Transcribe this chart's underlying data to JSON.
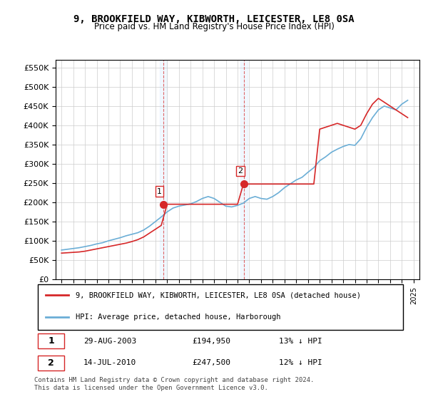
{
  "title": "9, BROOKFIELD WAY, KIBWORTH, LEICESTER, LE8 0SA",
  "subtitle": "Price paid vs. HM Land Registry's House Price Index (HPI)",
  "hpi_label": "HPI: Average price, detached house, Harborough",
  "price_label": "9, BROOKFIELD WAY, KIBWORTH, LEICESTER, LE8 0SA (detached house)",
  "legend_note1": "1    29-AUG-2003         £194,950        13% ↓ HPI",
  "legend_note2": "2    14-JUL-2010         £247,500        12% ↓ HPI",
  "footnote": "Contains HM Land Registry data © Crown copyright and database right 2024.\nThis data is licensed under the Open Government Licence v3.0.",
  "sale1_date": 2003.66,
  "sale1_price": 194950,
  "sale2_date": 2010.54,
  "sale2_price": 247500,
  "ylim": [
    0,
    570000
  ],
  "yticks": [
    0,
    50000,
    100000,
    150000,
    200000,
    250000,
    300000,
    350000,
    400000,
    450000,
    500000,
    550000
  ],
  "xlim_start": 1994.5,
  "xlim_end": 2025.5,
  "hpi_color": "#6baed6",
  "price_color": "#d62728",
  "sale_marker_color": "#d62728",
  "vline_color": "#d62728",
  "background_color": "#ffffff",
  "grid_color": "#cccccc",
  "hpi_years": [
    1995,
    1995.5,
    1996,
    1996.5,
    1997,
    1997.5,
    1998,
    1998.5,
    1999,
    1999.5,
    2000,
    2000.5,
    2001,
    2001.5,
    2002,
    2002.5,
    2003,
    2003.5,
    2004,
    2004.5,
    2005,
    2005.5,
    2006,
    2006.5,
    2007,
    2007.5,
    2008,
    2008.5,
    2009,
    2009.5,
    2010,
    2010.5,
    2011,
    2011.5,
    2012,
    2012.5,
    2013,
    2013.5,
    2014,
    2014.5,
    2015,
    2015.5,
    2016,
    2016.5,
    2017,
    2017.5,
    2018,
    2018.5,
    2019,
    2019.5,
    2020,
    2020.5,
    2021,
    2021.5,
    2022,
    2022.5,
    2023,
    2023.5,
    2024,
    2024.5
  ],
  "hpi_values": [
    76000,
    78000,
    80000,
    82000,
    85000,
    88000,
    92000,
    95000,
    100000,
    104000,
    108000,
    113000,
    117000,
    121000,
    128000,
    138000,
    150000,
    162000,
    175000,
    185000,
    190000,
    193000,
    196000,
    202000,
    210000,
    215000,
    210000,
    200000,
    190000,
    188000,
    192000,
    198000,
    210000,
    215000,
    210000,
    208000,
    215000,
    225000,
    238000,
    248000,
    258000,
    265000,
    278000,
    290000,
    308000,
    318000,
    330000,
    338000,
    345000,
    350000,
    348000,
    365000,
    395000,
    420000,
    440000,
    450000,
    445000,
    440000,
    455000,
    465000
  ],
  "price_years": [
    1995,
    1995.5,
    1996,
    1996.5,
    1997,
    1997.5,
    1998,
    1998.5,
    1999,
    1999.5,
    2000,
    2000.5,
    2001,
    2001.5,
    2002,
    2002.5,
    2003,
    2003.5,
    2004,
    2004.5,
    2005,
    2005.5,
    2006,
    2006.5,
    2007,
    2007.5,
    2008,
    2008.5,
    2009,
    2009.5,
    2010,
    2010.5,
    2011,
    2011.5,
    2012,
    2012.5,
    2013,
    2013.5,
    2014,
    2014.5,
    2015,
    2015.5,
    2016,
    2016.5,
    2017,
    2017.5,
    2018,
    2018.5,
    2019,
    2019.5,
    2020,
    2020.5,
    2021,
    2021.5,
    2022,
    2022.5,
    2023,
    2023.5,
    2024,
    2024.5
  ],
  "price_values": [
    68000,
    69000,
    70000,
    71000,
    73000,
    76000,
    79000,
    82000,
    85000,
    88000,
    91000,
    94000,
    98000,
    103000,
    110000,
    120000,
    130000,
    140000,
    194950,
    194950,
    194950,
    194950,
    194950,
    194950,
    194950,
    194950,
    194950,
    194950,
    194950,
    194950,
    194950,
    247500,
    247500,
    247500,
    247500,
    247500,
    247500,
    247500,
    247500,
    247500,
    247500,
    247500,
    247500,
    247500,
    390000,
    395000,
    400000,
    405000,
    400000,
    395000,
    390000,
    400000,
    430000,
    455000,
    470000,
    460000,
    450000,
    440000,
    430000,
    420000
  ]
}
